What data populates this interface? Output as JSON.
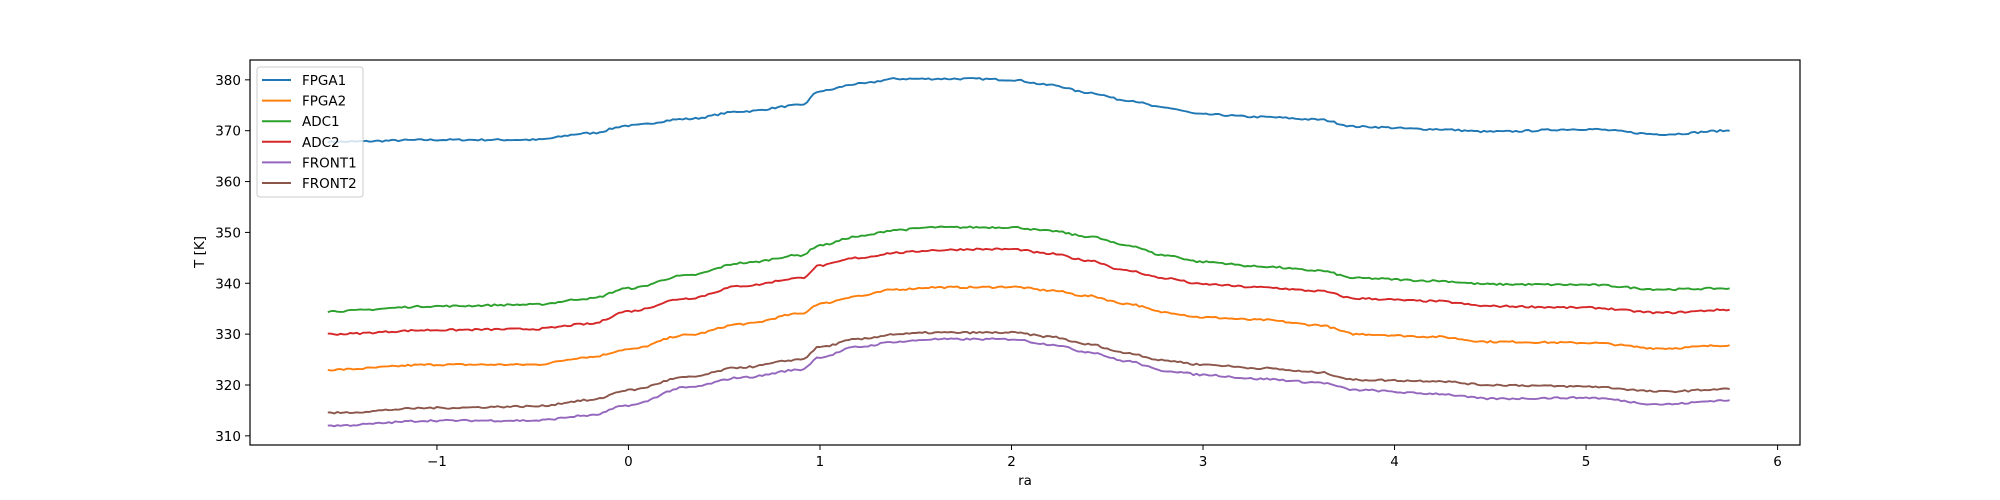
{
  "chart_data": {
    "type": "line",
    "title": "",
    "xlabel": "ra",
    "ylabel": "T [K]",
    "xlim": [
      -1.976,
      6.117
    ],
    "ylim": [
      308.2,
      383.9
    ],
    "xticks": [
      "−1",
      "0",
      "1",
      "2",
      "3",
      "4",
      "5",
      "6"
    ],
    "xtick_values": [
      -1,
      0,
      1,
      2,
      3,
      4,
      5,
      6
    ],
    "yticks": [
      "310",
      "320",
      "330",
      "340",
      "350",
      "360",
      "370",
      "380"
    ],
    "ytick_values": [
      310,
      320,
      330,
      340,
      350,
      360,
      370,
      380
    ],
    "grid": false,
    "legend_position": "top-left",
    "x": [
      -1.57,
      -1,
      -0.5,
      -0.2,
      0,
      0.3,
      0.6,
      0.9,
      1.0,
      1.2,
      1.4,
      1.6,
      1.8,
      2.0,
      2.2,
      2.4,
      2.6,
      2.8,
      3.0,
      3.3,
      3.6,
      3.8,
      4.2,
      4.5,
      5.0,
      5.4,
      5.75
    ],
    "series": [
      {
        "name": "FPGA1",
        "color": "#1f77b4",
        "values": [
          367.8,
          368.2,
          368.2,
          369.5,
          371,
          372.3,
          373.8,
          375,
          377.8,
          379.2,
          380.2,
          380.2,
          380.2,
          380,
          379,
          377.5,
          376,
          374.5,
          373.2,
          372.7,
          372.2,
          370.8,
          370.3,
          369.8,
          370.3,
          369.3,
          370
        ]
      },
      {
        "name": "FPGA2",
        "color": "#ff7f0e",
        "values": [
          323,
          324,
          324,
          325.5,
          327,
          329.8,
          332,
          334,
          336,
          337.5,
          338.8,
          339.2,
          339.2,
          339.3,
          338.6,
          337.5,
          336,
          334.3,
          333.3,
          332.8,
          331.8,
          330,
          329.5,
          328.5,
          328.3,
          327.2,
          327.8
        ]
      },
      {
        "name": "ADC1",
        "color": "#2ca02c",
        "values": [
          334.5,
          335.5,
          335.8,
          337,
          339,
          341.5,
          344,
          345.5,
          347.5,
          349.2,
          350.5,
          351,
          351,
          351,
          350.3,
          349.2,
          347.5,
          345.5,
          344.2,
          343.3,
          342.5,
          341,
          340.5,
          339.8,
          339.7,
          338.8,
          339
        ]
      },
      {
        "name": "ADC2",
        "color": "#d62728",
        "values": [
          330,
          330.8,
          331,
          332,
          334.5,
          337,
          339.5,
          341,
          343.5,
          345,
          346,
          346.5,
          346.7,
          346.7,
          345.8,
          344.5,
          342.5,
          341,
          339.8,
          339.2,
          338.5,
          337,
          336.5,
          335.5,
          335.2,
          334.2,
          334.8
        ]
      },
      {
        "name": "FRONT1",
        "color": "#9467bd",
        "values": [
          312,
          313,
          313,
          314,
          316,
          319.5,
          321.5,
          323,
          325.5,
          327.5,
          328.5,
          329,
          329,
          329,
          328,
          326.5,
          324.7,
          322.8,
          322,
          321.2,
          320.5,
          319,
          318.3,
          317.3,
          317.5,
          316.2,
          317
        ]
      },
      {
        "name": "FRONT2",
        "color": "#8c564b",
        "values": [
          314.5,
          315.5,
          315.8,
          317,
          319,
          321.5,
          323.5,
          325,
          327.5,
          329,
          330,
          330.3,
          330.3,
          330.3,
          329.5,
          328,
          326.3,
          324.8,
          324,
          323.3,
          322.5,
          321,
          320.8,
          320,
          319.7,
          318.7,
          319.2
        ]
      }
    ]
  }
}
